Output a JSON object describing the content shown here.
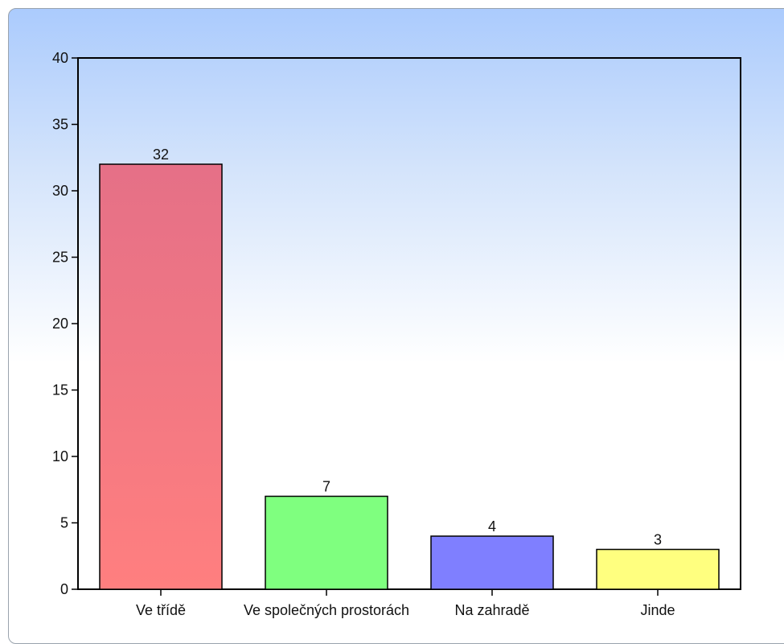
{
  "chart_data": {
    "type": "bar",
    "categories": [
      "Ve třídě",
      "Ve společných prostorách",
      "Na zahradě",
      "Jinde"
    ],
    "values": [
      32,
      7,
      4,
      3
    ],
    "ylim": [
      0,
      40
    ],
    "yticks": [
      0,
      5,
      10,
      15,
      20,
      25,
      30,
      35,
      40
    ],
    "grid": false,
    "legend": "none",
    "colors": [
      "#ff7f7f",
      "#7fff7f",
      "#7f7fff",
      "#ffff7f"
    ],
    "top_shade": "#e57087"
  }
}
